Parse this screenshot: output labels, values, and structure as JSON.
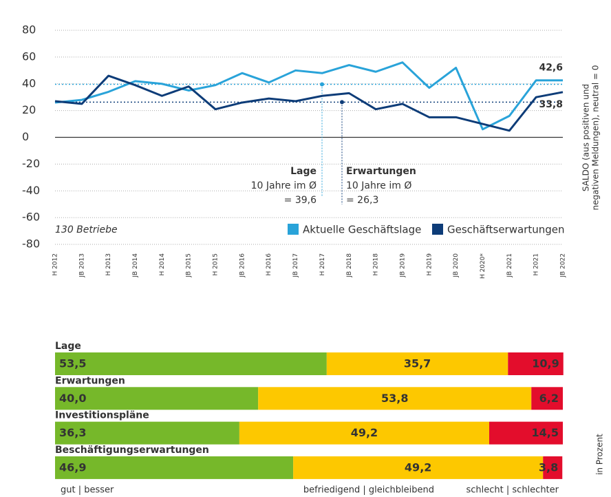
{
  "chart_data": [
    {
      "type": "line",
      "categories": [
        "H 2012",
        "JB 2013",
        "H 2013",
        "JB 2014",
        "H 2014",
        "JB 2015",
        "H 2015",
        "JB 2016",
        "H 2016",
        "JB 2017",
        "H 2017",
        "JB 2018",
        "H 2018",
        "JB 2019",
        "H 2019",
        "JB 2020",
        "H 2020*",
        "JB 2021",
        "H 2021",
        "JB 2022"
      ],
      "series": [
        {
          "name": "Aktuelle Geschäftslage",
          "color": "#29a3d9",
          "values": [
            26,
            28,
            34,
            42,
            40,
            35,
            39,
            48,
            41,
            50,
            48,
            54,
            49,
            56,
            37,
            52,
            6,
            16,
            42.6,
            42.6
          ],
          "end_label": "42,6"
        },
        {
          "name": "Geschäftserwartungen",
          "color": "#0d3c78",
          "values": [
            27,
            25,
            46,
            39,
            31,
            38,
            21,
            26,
            29,
            27,
            31,
            33,
            21,
            25,
            15,
            15,
            10,
            5,
            30,
            33.8
          ],
          "end_label": "33,8"
        }
      ],
      "ylim": [
        -80,
        80
      ],
      "yticks": [
        80,
        60,
        40,
        20,
        0,
        -20,
        -40,
        -60,
        -80
      ],
      "grid": true,
      "averages": [
        {
          "title": "Lage",
          "text": "10 Jahre im Ø",
          "value": 39.6,
          "label": "= 39,6",
          "color": "#29a3d9"
        },
        {
          "title": "Erwartungen",
          "text": "10 Jahre im Ø",
          "value": 26.3,
          "label": "= 26,3",
          "color": "#0d3c78"
        }
      ],
      "note": "130 Betriebe",
      "axis_label": [
        "SALDO (aus positiven und",
        "negativen Meldungen), neutral = 0"
      ]
    },
    {
      "type": "stacked_bar_horizontal",
      "categories": [
        "Lage",
        "Erwartungen",
        "Investitionspläne",
        "Beschäftigungserwartungen"
      ],
      "series": [
        {
          "name": "gut | besser",
          "color": "#76b82a",
          "values": [
            53.5,
            40.0,
            36.3,
            46.9
          ],
          "value_labels": [
            "53,5",
            "40,0",
            "36,3",
            "46,9"
          ]
        },
        {
          "name": "befriedigend | gleichbleibend",
          "color": "#fdc800",
          "values": [
            35.7,
            53.8,
            49.2,
            49.2
          ],
          "value_labels": [
            "35,7",
            "53,8",
            "49,2",
            "49,2"
          ]
        },
        {
          "name": "schlecht | schlechter",
          "color": "#e30d2c",
          "values": [
            10.9,
            6.2,
            14.5,
            3.8
          ],
          "value_labels": [
            "10,9",
            "6,2",
            "14,5",
            "3,8"
          ]
        }
      ],
      "xlim": [
        0,
        100
      ],
      "axis_label": "in Prozent"
    }
  ]
}
